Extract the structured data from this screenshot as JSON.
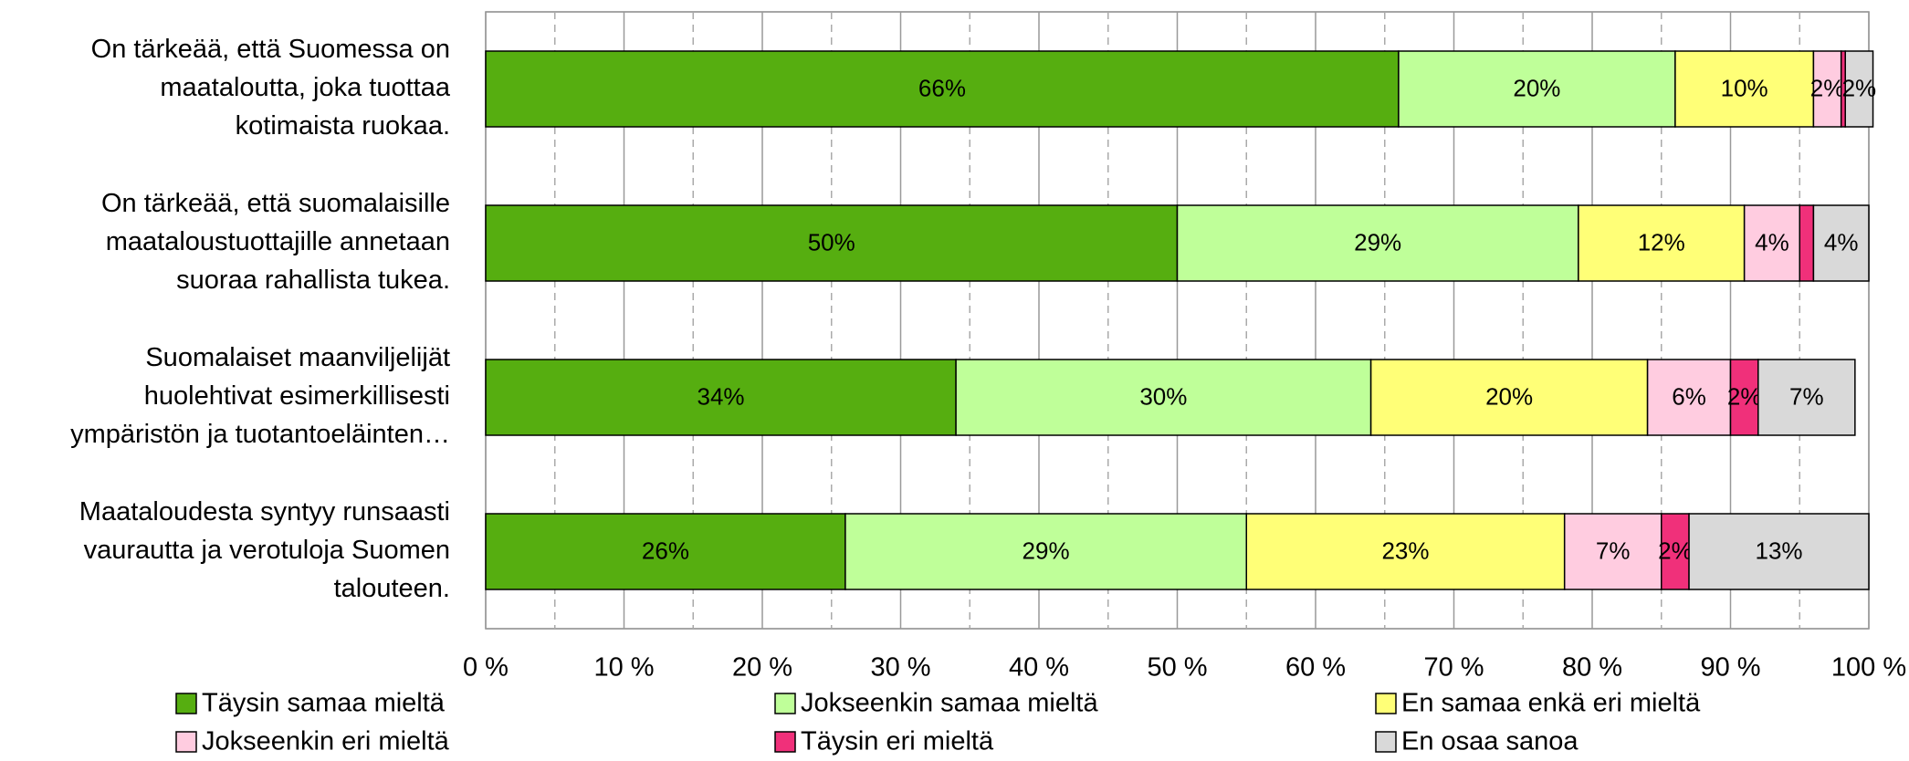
{
  "chart_data": {
    "type": "stacked_barh",
    "categories": [
      [
        "On tärkeää, että Suomessa on",
        "maataloutta, joka tuottaa",
        "kotimaista ruokaa."
      ],
      [
        "On tärkeää, että suomalaisille",
        "maataloustuottajille annetaan",
        "suoraa rahallista tukea."
      ],
      [
        "Suomalaiset maanviljelijät",
        "huolehtivat esimerkillisesti",
        "ympäristön ja tuotantoeläinten…"
      ],
      [
        "Maataloudesta syntyy runsaasti",
        "vaurautta ja verotuloja Suomen",
        "talouteen."
      ]
    ],
    "series": [
      {
        "name": "Täysin samaa mieltä",
        "color": "#56ae10",
        "values": [
          66,
          50,
          34,
          26
        ],
        "value_labels": [
          "66%",
          "50%",
          "34%",
          "26%"
        ]
      },
      {
        "name": "Jokseenkin samaa mieltä",
        "color": "#bfff99",
        "values": [
          20,
          29,
          30,
          29
        ],
        "value_labels": [
          "20%",
          "29%",
          "30%",
          "29%"
        ]
      },
      {
        "name": "En samaa enkä eri mieltä",
        "color": "#ffff77",
        "values": [
          10,
          12,
          20,
          23
        ],
        "value_labels": [
          "10%",
          "12%",
          "20%",
          "23%"
        ]
      },
      {
        "name": "Jokseenkin eri mieltä",
        "color": "#ffcce0",
        "values": [
          2,
          4,
          6,
          7
        ],
        "value_labels": [
          "2%",
          "4%",
          "6%",
          "7%"
        ]
      },
      {
        "name": "Täysin eri mieltä",
        "color": "#f0307a",
        "values": [
          0.3,
          1,
          2,
          2
        ],
        "value_labels": [
          null,
          null,
          "2%",
          "2%"
        ]
      },
      {
        "name": "En osaa sanoa",
        "color": "#d9d9d9",
        "values": [
          2,
          4,
          7,
          13
        ],
        "value_labels": [
          "2%",
          "4%",
          "7%",
          "13%"
        ]
      }
    ],
    "xlim": [
      0,
      100
    ],
    "xticks": [
      {
        "value": 0,
        "label": "0 %"
      },
      {
        "value": 10,
        "label": "10 %"
      },
      {
        "value": 20,
        "label": "20 %"
      },
      {
        "value": 30,
        "label": "30 %"
      },
      {
        "value": 40,
        "label": "40 %"
      },
      {
        "value": 50,
        "label": "50 %"
      },
      {
        "value": 60,
        "label": "60 %"
      },
      {
        "value": 70,
        "label": "70 %"
      },
      {
        "value": 80,
        "label": "80 %"
      },
      {
        "value": 90,
        "label": "90 %"
      },
      {
        "value": 100,
        "label": "100 %"
      }
    ],
    "grid": true
  }
}
